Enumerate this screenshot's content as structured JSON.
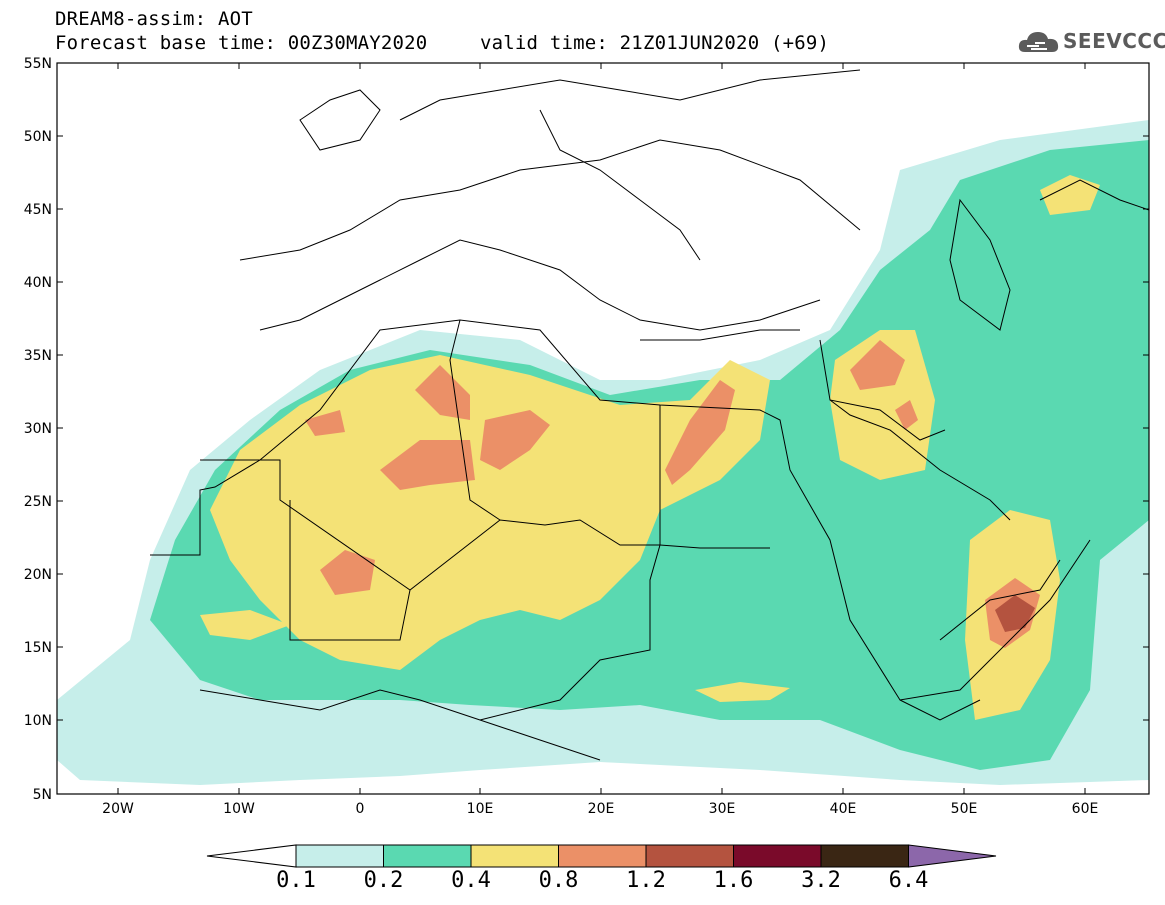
{
  "header": {
    "line1": "DREAM8-assim: AOT",
    "line2": "Forecast base time: 00Z30MAY2020",
    "valid": "valid time: 21Z01JUN2020 (+69)"
  },
  "logo": {
    "text": "SEEVCCC",
    "icon": "cloud-logo-icon"
  },
  "axes": {
    "lat_labels": [
      "55N",
      "50N",
      "45N",
      "40N",
      "35N",
      "30N",
      "25N",
      "20N",
      "15N",
      "10N",
      "5N"
    ],
    "lon_labels": [
      "20W",
      "10W",
      "0",
      "10E",
      "20E",
      "30E",
      "40E",
      "50E",
      "60E"
    ]
  },
  "colorbar": {
    "labels": [
      "0.1",
      "0.2",
      "0.4",
      "0.8",
      "1.2",
      "1.6",
      "3.2",
      "6.4"
    ],
    "colors": {
      "below": "#ffffff",
      "c1": "#c6eeea",
      "c2": "#5ad9b1",
      "c3": "#f4e276",
      "c4": "#eb9067",
      "c5": "#b4533f",
      "c6": "#7a0a2a",
      "c7": "#3a2614",
      "above": "#8c67aa"
    }
  }
}
